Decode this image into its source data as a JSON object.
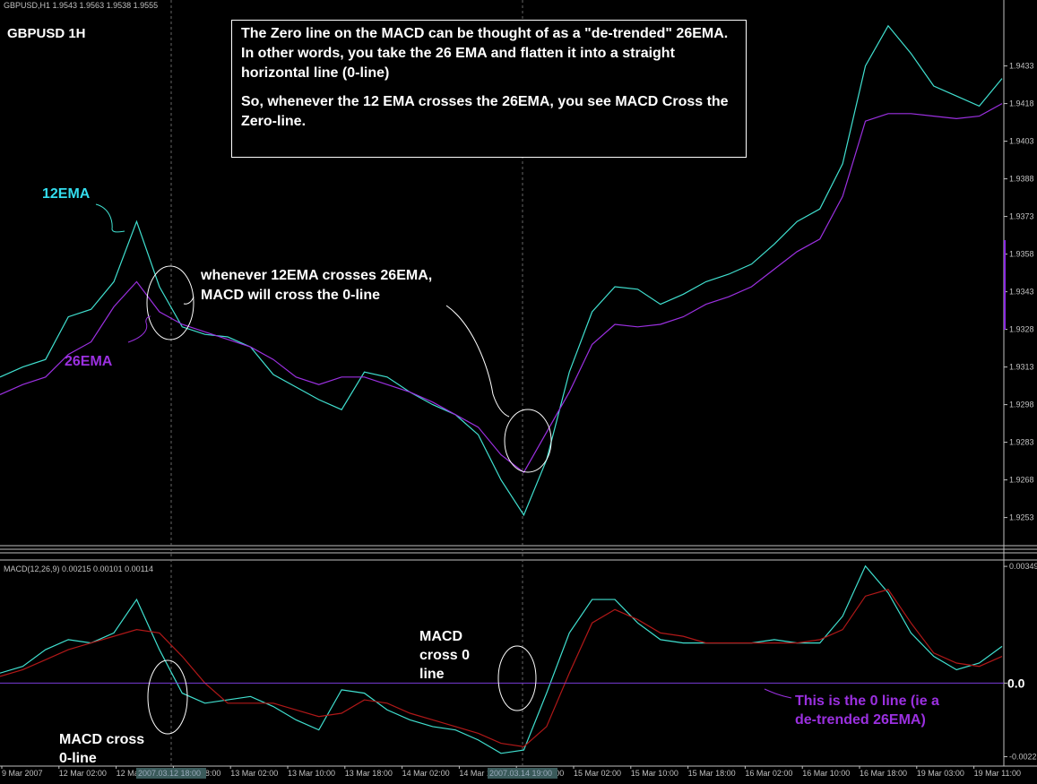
{
  "window": {
    "header_info": "GBPUSD,H1  1.9543 1.9563 1.9538 1.9555",
    "symbol_label": "GBPUSD 1H"
  },
  "annotations": {
    "note_paragraph_1": "The Zero line on the MACD can be thought of as a \"de-trended\" 26EMA.  In other words, you take the 26 EMA and flatten it into a straight horizontal line (0-line)",
    "note_paragraph_2": "So, whenever the 12 EMA crosses the 26EMA, you see MACD Cross the Zero-line.",
    "ema12_label": "12EMA",
    "ema26_label": "26EMA",
    "cross_note_line1": "whenever 12EMA crosses 26EMA,",
    "cross_note_line2": "MACD will cross the 0-line",
    "macd_cross_left_line1": "MACD cross",
    "macd_cross_left_line2": "0-line",
    "macd_cross_mid_line1": "MACD",
    "macd_cross_mid_line2": "cross 0",
    "macd_cross_mid_line3": "line",
    "zero_line_note_line1": "This is the 0 line (ie a",
    "zero_line_note_line2": "de-trended 26EMA)"
  },
  "colors": {
    "background": "#000000",
    "ema12": "#40e0d0",
    "ema26": "#9b30e0",
    "macd_main": "#40e0d0",
    "macd_signal": "#b01818",
    "zero_line": "#7a3cd8",
    "label_cyan": "#33ddee",
    "label_purple": "#9b30e0",
    "axis_text": "#c0c0c0"
  },
  "chart_data": [
    {
      "type": "line",
      "title": "GBPUSD 1H",
      "x": [
        0,
        4,
        8,
        12,
        16,
        20,
        24,
        28,
        32,
        36,
        40,
        44,
        48,
        52,
        56,
        60,
        64,
        68,
        72,
        76,
        80,
        84,
        88,
        92,
        96,
        100,
        104,
        108,
        112,
        116,
        120,
        124,
        128,
        132,
        136,
        140,
        144,
        148,
        152,
        156,
        160,
        164,
        168,
        172,
        176
      ],
      "ylim": [
        1.9245,
        1.9455
      ],
      "yticks": [
        "1.9433",
        "1.9418",
        "1.9403",
        "1.9388",
        "1.9373",
        "1.9358",
        "1.9343",
        "1.9328",
        "1.9313",
        "1.9298",
        "1.9283",
        "1.9268",
        "1.9253"
      ],
      "xticks": [
        "9 Mar 2007",
        "12 Mar 02:00",
        "12 Mar 10:00",
        "12 Mar 18:00",
        "13 Mar 02:00",
        "13 Mar 10:00",
        "13 Mar 18:00",
        "14 Mar 02:00",
        "14 Mar 10:00",
        "14 Mar 18:00",
        "15 Mar 02:00",
        "15 Mar 10:00",
        "15 Mar 18:00",
        "16 Mar 02:00",
        "16 Mar 10:00",
        "16 Mar 18:00",
        "19 Mar 03:00",
        "19 Mar 11:00"
      ],
      "xtick_highlights": [
        "2007.03.12 18:00",
        "2007.03.14 19:00"
      ],
      "series": [
        {
          "name": "12EMA",
          "values": [
            1.9309,
            1.9313,
            1.9316,
            1.9333,
            1.9336,
            1.9347,
            1.9371,
            1.9345,
            1.9329,
            1.9326,
            1.9325,
            1.9321,
            1.931,
            1.9305,
            1.93,
            1.9296,
            1.9311,
            1.9309,
            1.9303,
            1.9298,
            1.9294,
            1.9286,
            1.9268,
            1.9254,
            1.9276,
            1.9311,
            1.9335,
            1.9345,
            1.9344,
            1.9338,
            1.9342,
            1.9347,
            1.935,
            1.9354,
            1.9362,
            1.9371,
            1.9376,
            1.9394,
            1.9433,
            1.9449,
            1.9438,
            1.9425,
            1.9421,
            1.9417,
            1.9428
          ]
        },
        {
          "name": "26EMA",
          "values": [
            1.9302,
            1.9306,
            1.9309,
            1.9318,
            1.9323,
            1.9337,
            1.9347,
            1.9335,
            1.933,
            1.9327,
            1.9324,
            1.9321,
            1.9316,
            1.9309,
            1.9306,
            1.9309,
            1.9309,
            1.9306,
            1.9303,
            1.9299,
            1.9294,
            1.9289,
            1.9278,
            1.9271,
            1.9287,
            1.9303,
            1.9322,
            1.933,
            1.9329,
            1.933,
            1.9333,
            1.9338,
            1.9341,
            1.9345,
            1.9352,
            1.9359,
            1.9364,
            1.9381,
            1.9411,
            1.9414,
            1.9414,
            1.9413,
            1.9412,
            1.9413,
            1.9418
          ]
        }
      ]
    },
    {
      "type": "line",
      "title": "MACD(12,26,9) 0.00215 0.00101 0.00114",
      "x": [
        0,
        4,
        8,
        12,
        16,
        20,
        24,
        28,
        32,
        36,
        40,
        44,
        48,
        52,
        56,
        60,
        64,
        68,
        72,
        76,
        80,
        84,
        88,
        92,
        96,
        100,
        104,
        108,
        112,
        116,
        120,
        124,
        128,
        132,
        136,
        140,
        144,
        148,
        152,
        156,
        160,
        164,
        168,
        172,
        176
      ],
      "ylim": [
        -0.0024,
        0.0036
      ],
      "yticks": [
        "0.00349",
        "0.0",
        "-0.0022"
      ],
      "zero_line": 0.0,
      "series": [
        {
          "name": "MACD",
          "values": [
            0.0003,
            0.0005,
            0.001,
            0.0013,
            0.0012,
            0.0015,
            0.0025,
            0.001,
            -0.0003,
            -0.0006,
            -0.0005,
            -0.0004,
            -0.0007,
            -0.0011,
            -0.0014,
            -0.0002,
            -0.0003,
            -0.0008,
            -0.0011,
            -0.0013,
            -0.0014,
            -0.0017,
            -0.0021,
            -0.002,
            -0.0003,
            0.0015,
            0.0025,
            0.0025,
            0.0018,
            0.0013,
            0.0012,
            0.0012,
            0.0012,
            0.0012,
            0.0013,
            0.0012,
            0.0012,
            0.002,
            0.0035,
            0.0027,
            0.0015,
            0.0008,
            0.0004,
            0.0006,
            0.0011
          ]
        },
        {
          "name": "Signal",
          "values": [
            0.0002,
            0.0004,
            0.0007,
            0.001,
            0.0012,
            0.0014,
            0.0016,
            0.0015,
            0.0008,
            0.0,
            -0.0006,
            -0.0006,
            -0.0006,
            -0.0008,
            -0.001,
            -0.0009,
            -0.0005,
            -0.0006,
            -0.0009,
            -0.0011,
            -0.0013,
            -0.0015,
            -0.0018,
            -0.0019,
            -0.0013,
            0.0003,
            0.0018,
            0.0022,
            0.0019,
            0.0015,
            0.0014,
            0.0012,
            0.0012,
            0.0012,
            0.0012,
            0.0012,
            0.0013,
            0.0016,
            0.0026,
            0.0028,
            0.0018,
            0.0009,
            0.0006,
            0.0005,
            0.0008
          ]
        }
      ]
    }
  ]
}
